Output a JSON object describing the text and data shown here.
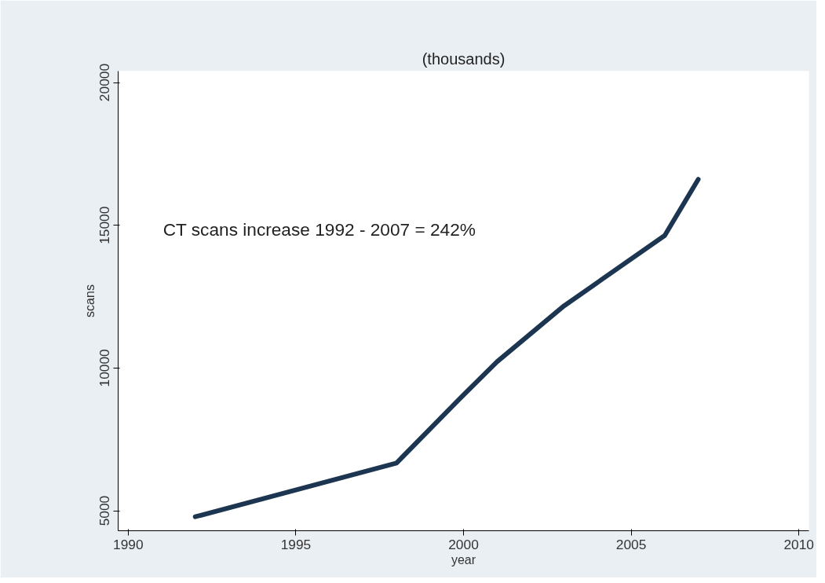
{
  "chart_data": {
    "type": "line",
    "title": "(thousands)",
    "xlabel": "year",
    "ylabel": "scans",
    "x": [
      1992,
      1998,
      2000,
      2001,
      2003,
      2006,
      2007
    ],
    "series": [
      {
        "color": "#1c3550",
        "values": [
          4790,
          6670,
          9060,
          10220,
          12180,
          14640,
          16610
        ]
      }
    ],
    "xlim": [
      1989.7,
      2010.3
    ],
    "ylim": [
      4300,
      20400
    ],
    "xticks": [
      1990,
      1995,
      2000,
      2005,
      2010
    ],
    "yticks": [
      5000,
      10000,
      15000,
      20000
    ],
    "grid": false,
    "marker": "none",
    "line_style": "solid",
    "annotations": [
      "CT scans increase 1992 - 2007 = 242%"
    ]
  }
}
